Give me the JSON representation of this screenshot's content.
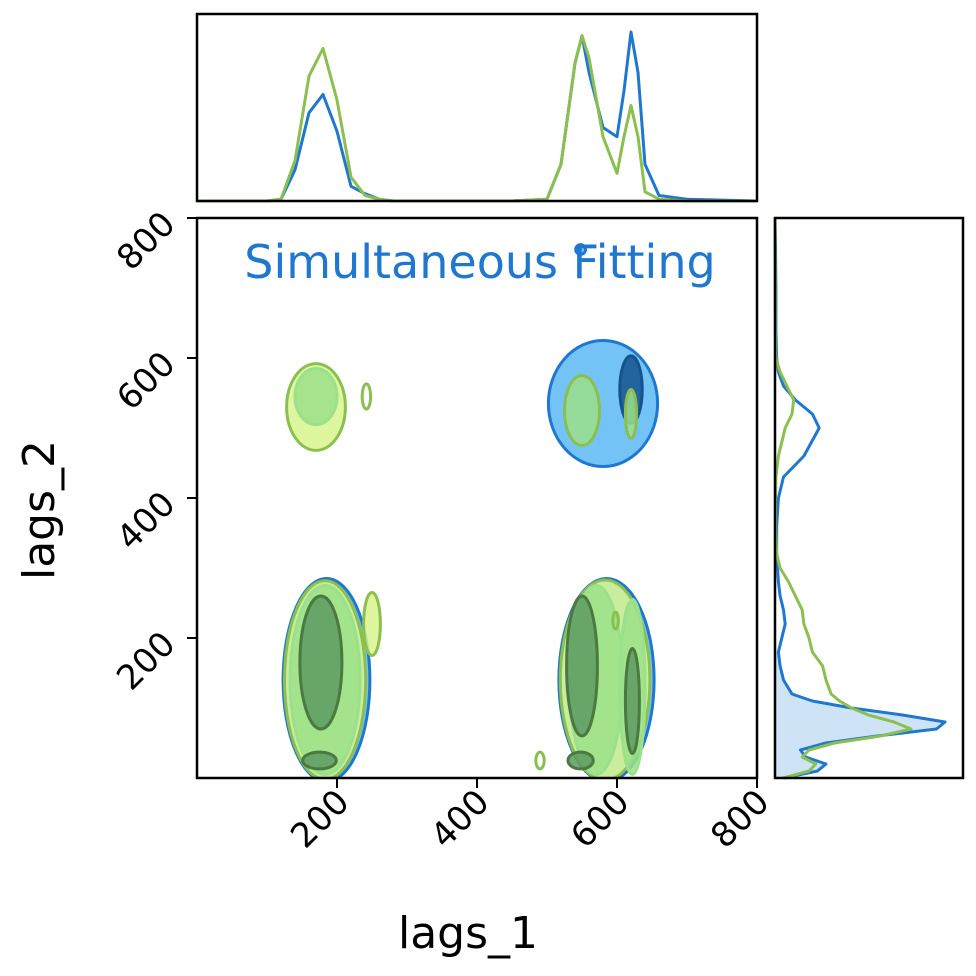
{
  "chart_data": {
    "type": "corner-contour",
    "annotation": "Simultaneous Fitting",
    "annotation_color": "#1f77d0",
    "xlabel": "lags_1",
    "ylabel": "lags_2",
    "xlim": [
      0,
      800
    ],
    "ylim": [
      0,
      800
    ],
    "xticks": [
      "200",
      "400",
      "600",
      "800"
    ],
    "yticks": [
      "200",
      "400",
      "600",
      "800"
    ],
    "colors": {
      "blue_line": "#1f77d0",
      "blue_fill_outer": "#5cb8f5",
      "blue_fill_mid": "#2f7fc4",
      "blue_fill_inner": "#15538f",
      "green_line": "#8bbf4f",
      "green_fill_outer": "#d8f58c",
      "green_fill_mid": "#9be08a",
      "green_fill_inner": "#5e9a62",
      "marginal_fill": "#cfe3f6"
    },
    "series": [
      {
        "name": "",
        "color": "#1f77d0"
      },
      {
        "name": "",
        "color": "#8bbf4f"
      }
    ],
    "marginal_x": {
      "x": [
        0,
        100,
        120,
        140,
        160,
        180,
        200,
        220,
        240,
        260,
        280,
        350,
        450,
        500,
        520,
        540,
        550,
        560,
        580,
        600,
        610,
        620,
        630,
        640,
        660,
        700,
        800
      ],
      "blue": [
        0,
        0,
        0.01,
        0.17,
        0.48,
        0.58,
        0.38,
        0.08,
        0.04,
        0.01,
        0,
        0,
        0,
        0.01,
        0.2,
        0.75,
        0.9,
        0.7,
        0.4,
        0.35,
        0.6,
        0.92,
        0.7,
        0.2,
        0.03,
        0.01,
        0
      ],
      "green": [
        0,
        0,
        0.01,
        0.22,
        0.68,
        0.83,
        0.55,
        0.13,
        0.03,
        0.01,
        0,
        0,
        0,
        0.01,
        0.2,
        0.75,
        0.9,
        0.78,
        0.35,
        0.15,
        0.35,
        0.52,
        0.35,
        0.05,
        0.01,
        0,
        0
      ]
    },
    "marginal_y": {
      "y": [
        0,
        10,
        20,
        30,
        40,
        50,
        60,
        70,
        80,
        90,
        100,
        110,
        120,
        140,
        160,
        180,
        200,
        220,
        240,
        260,
        280,
        300,
        320,
        360,
        400,
        430,
        460,
        500,
        520,
        540,
        560,
        580,
        600,
        640,
        700,
        760,
        800
      ],
      "blue": [
        0.05,
        0.25,
        0.3,
        0.18,
        0.15,
        0.3,
        0.6,
        0.95,
        1.0,
        0.75,
        0.45,
        0.22,
        0.1,
        0.05,
        0.03,
        0.02,
        0.04,
        0.06,
        0.05,
        0.03,
        0.02,
        0.015,
        0.01,
        0.01,
        0.02,
        0.05,
        0.17,
        0.26,
        0.22,
        0.12,
        0.05,
        0.02,
        0.01,
        0.005,
        0.005,
        0.003,
        0
      ],
      "green": [
        0.05,
        0.2,
        0.24,
        0.16,
        0.2,
        0.35,
        0.62,
        0.8,
        0.7,
        0.55,
        0.45,
        0.38,
        0.33,
        0.3,
        0.28,
        0.22,
        0.2,
        0.17,
        0.16,
        0.12,
        0.08,
        0.03,
        0.01,
        0.003,
        0.003,
        0.005,
        0.02,
        0.06,
        0.1,
        0.11,
        0.07,
        0.03,
        0.005,
        0.002,
        0.001,
        0,
        0
      ],
      "blue_fill_until": 180
    },
    "contours": [
      {
        "cx": 170,
        "cy": 530,
        "rx": 42,
        "ry": 62,
        "fill": "#d8f58c",
        "stroke": "#8bbf4f"
      },
      {
        "cx": 170,
        "cy": 545,
        "rx": 30,
        "ry": 40,
        "fill": "#9be08a",
        "stroke": "#9be08a"
      },
      {
        "cx": 242,
        "cy": 545,
        "rx": 6,
        "ry": 18,
        "fill": "none",
        "stroke": "#8bbf4f"
      },
      {
        "cx": 580,
        "cy": 535,
        "rx": 78,
        "ry": 90,
        "fill": "#5cb8f5",
        "stroke": "#1f77d0"
      },
      {
        "cx": 620,
        "cy": 555,
        "rx": 16,
        "ry": 48,
        "fill": "#15538f",
        "stroke": "#15538f"
      },
      {
        "cx": 550,
        "cy": 525,
        "rx": 25,
        "ry": 50,
        "fill": "#9be08a",
        "stroke": "#8bbf4f"
      },
      {
        "cx": 620,
        "cy": 520,
        "rx": 8,
        "ry": 35,
        "fill": "#9be08a",
        "stroke": "#8bbf4f"
      },
      {
        "cx": 548,
        "cy": 755,
        "rx": 7,
        "ry": 7,
        "fill": "#5cb8f5",
        "stroke": "#1f77d0"
      },
      {
        "cx": 185,
        "cy": 140,
        "rx": 62,
        "ry": 145,
        "fill": "#5cb8f5",
        "stroke": "#1f77d0"
      },
      {
        "cx": 183,
        "cy": 140,
        "rx": 58,
        "ry": 142,
        "fill": "#d8f58c",
        "stroke": "#8bbf4f"
      },
      {
        "cx": 183,
        "cy": 140,
        "rx": 50,
        "ry": 135,
        "fill": "#9be08a",
        "stroke": "#9be08a"
      },
      {
        "cx": 177,
        "cy": 165,
        "rx": 30,
        "ry": 95,
        "fill": "#5e9a62",
        "stroke": "#4a7a40"
      },
      {
        "cx": 175,
        "cy": 25,
        "rx": 24,
        "ry": 12,
        "fill": "#5e9a62",
        "stroke": "#4a7a40"
      },
      {
        "cx": 250,
        "cy": 220,
        "rx": 12,
        "ry": 45,
        "fill": "#d8f58c",
        "stroke": "#8bbf4f"
      },
      {
        "cx": 585,
        "cy": 140,
        "rx": 68,
        "ry": 145,
        "fill": "#5cb8f5",
        "stroke": "#1f77d0"
      },
      {
        "cx": 583,
        "cy": 140,
        "rx": 64,
        "ry": 143,
        "fill": "#d8f58c",
        "stroke": "#8bbf4f"
      },
      {
        "cx": 570,
        "cy": 140,
        "rx": 38,
        "ry": 135,
        "fill": "#9be08a",
        "stroke": "#9be08a"
      },
      {
        "cx": 622,
        "cy": 130,
        "rx": 18,
        "ry": 125,
        "fill": "#9be08a",
        "stroke": "#9be08a"
      },
      {
        "cx": 550,
        "cy": 160,
        "rx": 22,
        "ry": 100,
        "fill": "#5e9a62",
        "stroke": "#4a7a40"
      },
      {
        "cx": 622,
        "cy": 110,
        "rx": 10,
        "ry": 75,
        "fill": "#5e9a62",
        "stroke": "#4a7a40"
      },
      {
        "cx": 548,
        "cy": 25,
        "rx": 18,
        "ry": 12,
        "fill": "#5e9a62",
        "stroke": "#4a7a40"
      },
      {
        "cx": 490,
        "cy": 25,
        "rx": 6,
        "ry": 12,
        "fill": "none",
        "stroke": "#8bbf4f"
      },
      {
        "cx": 598,
        "cy": 225,
        "rx": 4,
        "ry": 12,
        "fill": "none",
        "stroke": "#8bbf4f"
      }
    ]
  }
}
